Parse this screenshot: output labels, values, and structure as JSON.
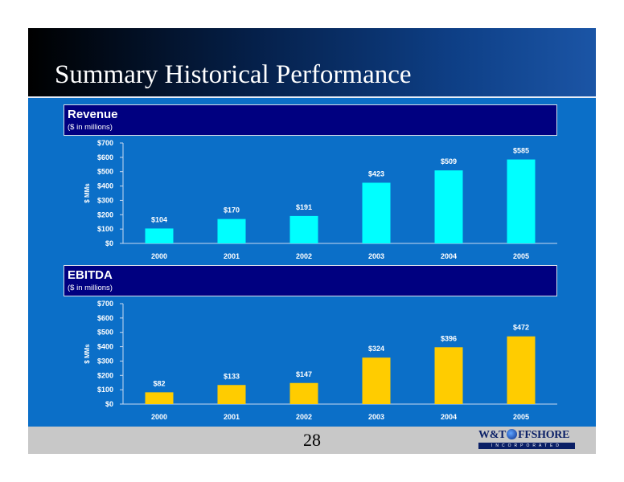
{
  "slide": {
    "title": "Summary Historical Performance",
    "page_number": "28",
    "logo": {
      "left": "W&T",
      "right": "FFSHORE",
      "sub": "INCORPORATED"
    }
  },
  "sections": {
    "revenue": {
      "title": "Revenue",
      "subtitle": "($ in millions)"
    },
    "ebitda": {
      "title": "EBITDA",
      "subtitle": "($ in millions)"
    }
  },
  "colors": {
    "revenue_bar": "#00ffff",
    "ebitda_bar": "#ffcc00",
    "background": "#0b6fc8",
    "section_box": "#000080"
  },
  "chart_data": [
    {
      "type": "bar",
      "title": "Revenue",
      "categories": [
        "2000",
        "2001",
        "2002",
        "2003",
        "2004",
        "2005"
      ],
      "values": [
        104,
        170,
        191,
        423,
        509,
        585
      ],
      "data_labels": [
        "$104",
        "$170",
        "$191",
        "$423",
        "$509",
        "$585"
      ],
      "ylabel": "$ MMs",
      "ylim": [
        0,
        700
      ],
      "yticks": [
        0,
        100,
        200,
        300,
        400,
        500,
        600,
        700
      ],
      "ytick_labels": [
        "$0",
        "$100",
        "$200",
        "$300",
        "$400",
        "$500",
        "$600",
        "$700"
      ],
      "grid": false,
      "legend": "none",
      "color": "#00ffff"
    },
    {
      "type": "bar",
      "title": "EBITDA",
      "categories": [
        "2000",
        "2001",
        "2002",
        "2003",
        "2004",
        "2005"
      ],
      "values": [
        82,
        133,
        147,
        324,
        396,
        472
      ],
      "data_labels": [
        "$82",
        "$133",
        "$147",
        "$324",
        "$396",
        "$472"
      ],
      "ylabel": "$ MMs",
      "ylim": [
        0,
        700
      ],
      "yticks": [
        0,
        100,
        200,
        300,
        400,
        500,
        600,
        700
      ],
      "ytick_labels": [
        "$0",
        "$100",
        "$200",
        "$300",
        "$400",
        "$500",
        "$600",
        "$700"
      ],
      "grid": false,
      "legend": "none",
      "color": "#ffcc00"
    }
  ]
}
